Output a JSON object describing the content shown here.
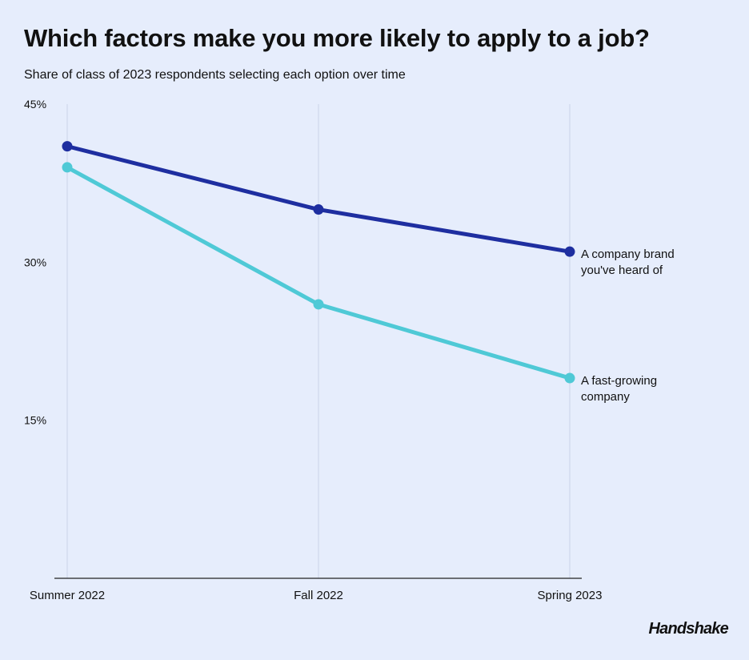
{
  "header": {
    "title": "Which factors make you more likely to apply to a job?",
    "subtitle": "Share of class of 2023 respondents selecting each option over time"
  },
  "brand": {
    "label": "Handshake"
  },
  "chart_data": {
    "type": "line",
    "title": "Which factors make you more likely to apply to a job?",
    "subtitle": "Share of class of 2023 respondents selecting each option over time",
    "xlabel": "",
    "ylabel": "",
    "categories": [
      "Summer 2022",
      "Fall 2022",
      "Spring 2023"
    ],
    "yticks": [
      15,
      30,
      45
    ],
    "ytick_labels": [
      "15%",
      "30%",
      "45%"
    ],
    "ylim": [
      0,
      45
    ],
    "grid": "vertical",
    "legend": "direct labels at line ends",
    "series": [
      {
        "name": "A company brand you've heard of",
        "label_lines": [
          "A company brand",
          "you've heard of"
        ],
        "values": [
          41,
          35,
          31
        ],
        "color": "#1e2ea0"
      },
      {
        "name": "A fast-growing company",
        "label_lines": [
          "A fast-growing",
          "company"
        ],
        "values": [
          39,
          26,
          19
        ],
        "color": "#4fc9d6"
      }
    ]
  },
  "colors": {
    "background": "#e6edfc",
    "gridline": "#c9d3e8",
    "axis": "#222222"
  }
}
